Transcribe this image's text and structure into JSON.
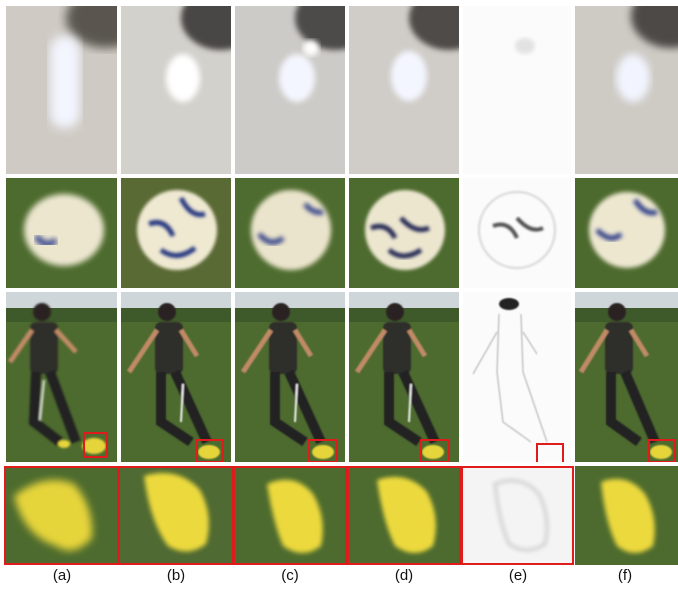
{
  "columns": [
    {
      "id": "a",
      "label": "(a)"
    },
    {
      "id": "b",
      "label": "(b)"
    },
    {
      "id": "c",
      "label": "(c)"
    },
    {
      "id": "d",
      "label": "(d)"
    },
    {
      "id": "e",
      "label": "(e)"
    },
    {
      "id": "f",
      "label": "(f)"
    }
  ],
  "rows": [
    {
      "id": "blurry-object-on-floor"
    },
    {
      "id": "soccer-ball-on-grass"
    },
    {
      "id": "man-kicking-on-field"
    },
    {
      "id": "zoomed-yellow-shoe"
    }
  ],
  "highlight_color": "#e01b1b",
  "colors": {
    "floor": "#cfcbc4",
    "grass": "#4d6b2e",
    "shirt": "#2e2d2c",
    "shoe": "#e6d43a",
    "ball": "#ece6cf",
    "sky": "#cfd6da",
    "error_bg": "#fbfbfb"
  }
}
